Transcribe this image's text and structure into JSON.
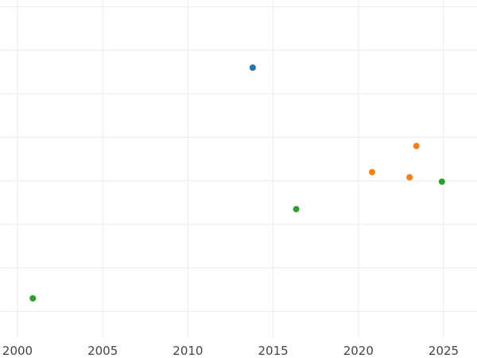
{
  "chart_data": {
    "type": "scatter",
    "title": "",
    "xlabel": "",
    "ylabel": "",
    "xlim": [
      2000,
      2026.5
    ],
    "ylim": [
      0,
      8
    ],
    "x_ticks": [
      2000,
      2005,
      2010,
      2015,
      2020,
      2025
    ],
    "x_tick_labels": [
      "2000",
      "2005",
      "2010",
      "2015",
      "2020",
      "2025"
    ],
    "y_grid": [
      0.7,
      1.7,
      2.7,
      3.7,
      4.7,
      5.7,
      6.7,
      7.7
    ],
    "grid": true,
    "legend": "none",
    "series": [
      {
        "color": "#1f77b4",
        "points": [
          {
            "x": 2013.8,
            "y": 6.3
          }
        ]
      },
      {
        "color": "#ff7f0e",
        "points": [
          {
            "x": 2020.8,
            "y": 3.9
          },
          {
            "x": 2023.0,
            "y": 3.78
          },
          {
            "x": 2023.4,
            "y": 4.5
          }
        ]
      },
      {
        "color": "#2ca02c",
        "points": [
          {
            "x": 2000.9,
            "y": 1.0
          },
          {
            "x": 2016.35,
            "y": 3.05
          },
          {
            "x": 2024.9,
            "y": 3.68
          }
        ]
      }
    ]
  }
}
